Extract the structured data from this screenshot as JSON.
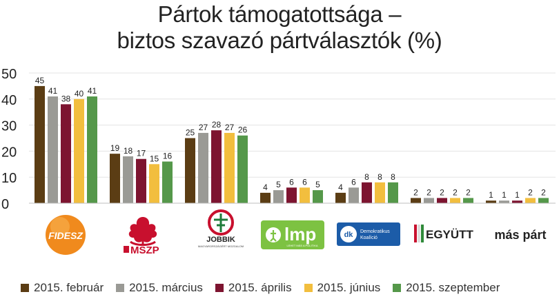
{
  "chart_data": {
    "type": "bar",
    "title_lines": [
      "Pártok támogatottsága –",
      "biztos szavazó pártválasztók (%)"
    ],
    "categories": [
      "FIDESZ",
      "MSZP",
      "JOBBIK",
      "LMP",
      "DK",
      "EGYÜTT",
      "más párt"
    ],
    "logo_texts": {
      "fidesz": "FIDESZ",
      "mszp": "MSZP",
      "jobbik": "JOBBIK",
      "jobbik_sub": "MAGYARORSZÁGÉRT MOZGALOM",
      "lmp": "lmp",
      "lmp_sub": "LEHET MÁS A POLITIKA",
      "dk": "dk",
      "dk_line1": "Demokratikus",
      "dk_line2": "Koalíció",
      "egyutt": "EGYÜTT",
      "mas_part": "más párt"
    },
    "series": [
      {
        "name": "2015. február",
        "color": "#5b3d14",
        "values": [
          45,
          19,
          25,
          4,
          4,
          2,
          1
        ]
      },
      {
        "name": "2015. március",
        "color": "#9a9a95",
        "values": [
          41,
          18,
          27,
          5,
          6,
          2,
          1
        ]
      },
      {
        "name": "2015. április",
        "color": "#7d1430",
        "values": [
          38,
          17,
          28,
          6,
          8,
          2,
          1
        ]
      },
      {
        "name": "2015. június",
        "color": "#f2be3e",
        "values": [
          40,
          15,
          27,
          6,
          8,
          2,
          2
        ]
      },
      {
        "name": "2015. szeptember",
        "color": "#55984a",
        "values": [
          41,
          16,
          26,
          5,
          8,
          2,
          2
        ]
      }
    ],
    "ylim": [
      0,
      50
    ],
    "yticks": [
      "0",
      "10",
      "20",
      "30",
      "40",
      "50"
    ],
    "grid": true,
    "legend_position": "bottom"
  }
}
